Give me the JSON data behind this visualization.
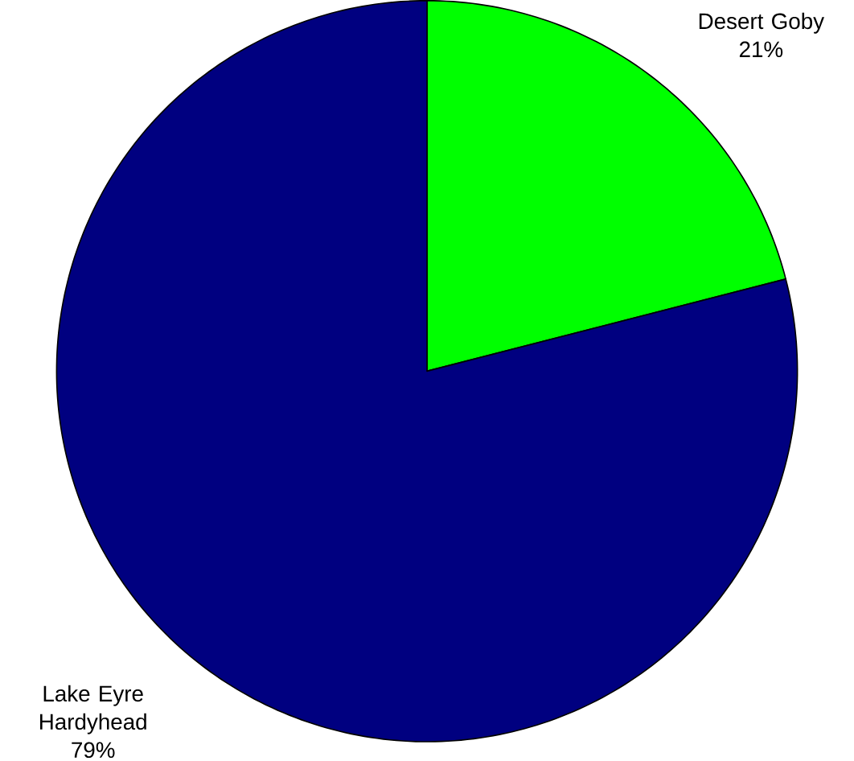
{
  "chart_data": {
    "type": "pie",
    "categories": [
      "Desert Goby",
      "Lake Eyre Hardyhead"
    ],
    "values": [
      21,
      79
    ],
    "colors": [
      "#00ff00",
      "#000080"
    ],
    "value_labels": [
      "21%",
      "79%"
    ]
  }
}
